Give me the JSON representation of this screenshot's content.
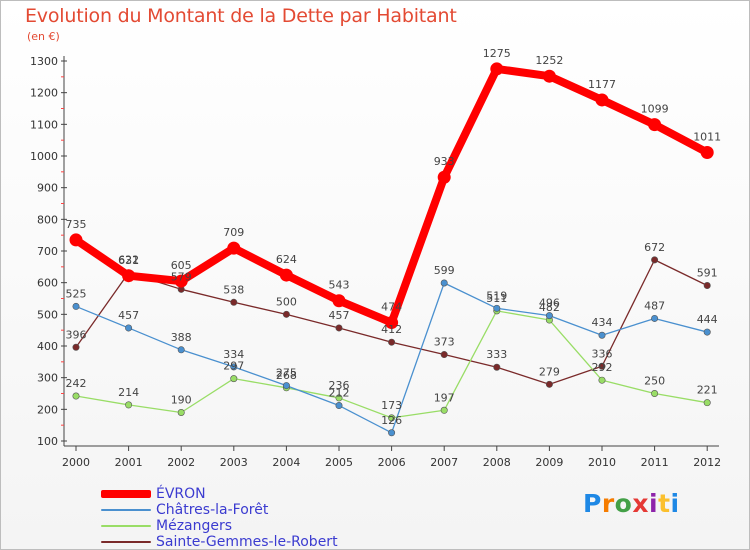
{
  "title": "Evolution du Montant de la Dette par Habitant",
  "subtitle": "(en €)",
  "logo": "Proxiti",
  "chart_data": {
    "type": "line",
    "x": [
      "2000",
      "2001",
      "2002",
      "2003",
      "2004",
      "2005",
      "2006",
      "2007",
      "2008",
      "2009",
      "2010",
      "2011",
      "2012"
    ],
    "ylim": [
      100,
      1300
    ],
    "yticks": [
      100,
      200,
      300,
      400,
      500,
      600,
      700,
      800,
      900,
      1000,
      1100,
      1200,
      1300
    ],
    "grid": false,
    "legend_position": "bottom-left",
    "series": [
      {
        "name": "ÉVRON",
        "color": "#ff0000",
        "values": [
          735,
          622,
          605,
          709,
          624,
          543,
          474,
          933,
          1275,
          1252,
          1177,
          1099,
          1011
        ]
      },
      {
        "name": "Châtres-la-Forêt",
        "color": "#4a90cf",
        "values": [
          525,
          457,
          388,
          334,
          275,
          212,
          126,
          599,
          519,
          496,
          434,
          487,
          444
        ]
      },
      {
        "name": "Mézangers",
        "color": "#99dd66",
        "values": [
          242,
          214,
          190,
          297,
          268,
          236,
          173,
          197,
          511,
          482,
          292,
          250,
          221
        ]
      },
      {
        "name": "Sainte-Gemmes-le-Robert",
        "color": "#7a2a2a",
        "values": [
          396,
          631,
          579,
          538,
          500,
          457,
          412,
          373,
          333,
          279,
          336,
          672,
          591
        ]
      }
    ]
  }
}
